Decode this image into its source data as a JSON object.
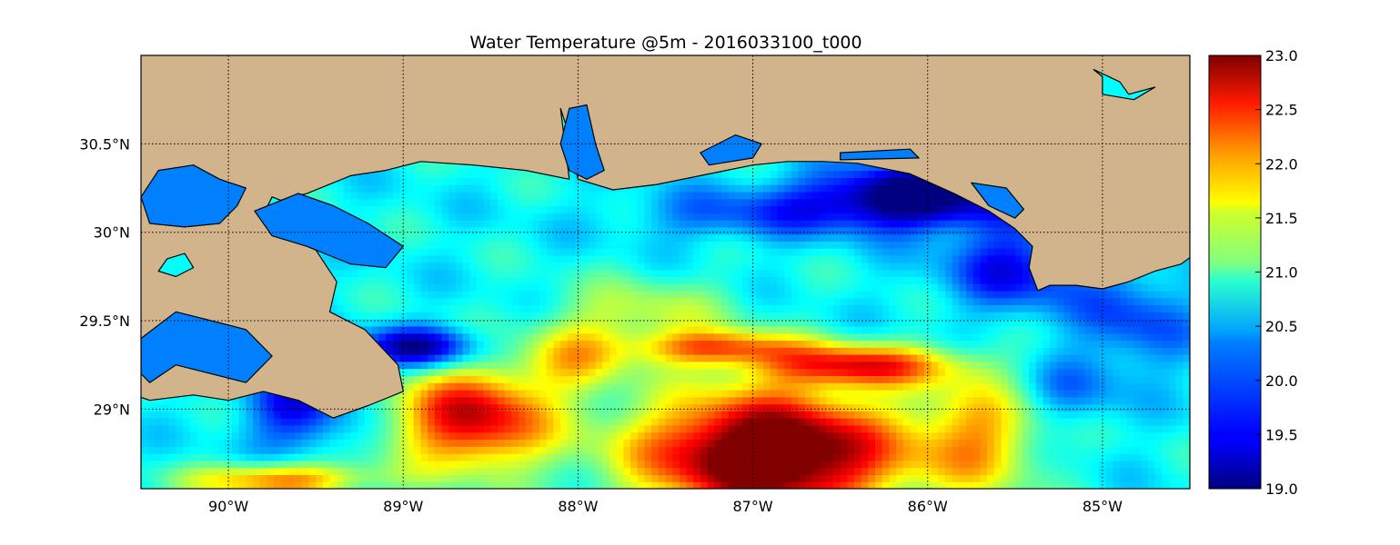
{
  "chart_data": {
    "type": "heatmap",
    "title": "Water Temperature @5m - 2016033100_t000",
    "xlim": [
      -90.5,
      -84.5
    ],
    "ylim": [
      28.55,
      31.0
    ],
    "x_ticks": [
      {
        "value": -90,
        "label": "90°W"
      },
      {
        "value": -89,
        "label": "89°W"
      },
      {
        "value": -88,
        "label": "88°W"
      },
      {
        "value": -87,
        "label": "87°W"
      },
      {
        "value": -86,
        "label": "86°W"
      },
      {
        "value": -85,
        "label": "85°W"
      }
    ],
    "y_ticks": [
      {
        "value": 29.0,
        "label": "29°N"
      },
      {
        "value": 29.5,
        "label": "29.5°N"
      },
      {
        "value": 30.0,
        "label": "30°N"
      },
      {
        "value": 30.5,
        "label": "30.5°N"
      }
    ],
    "grid": "on (dotted)",
    "colorbar": {
      "min": 19.0,
      "max": 23.0,
      "colormap": "jet",
      "ticks": [
        {
          "value": 19.0,
          "label": "19.0"
        },
        {
          "value": 19.5,
          "label": "19.5"
        },
        {
          "value": 20.0,
          "label": "20.0"
        },
        {
          "value": 20.5,
          "label": "20.5"
        },
        {
          "value": 21.0,
          "label": "21.0"
        },
        {
          "value": 21.5,
          "label": "21.5"
        },
        {
          "value": 22.0,
          "label": "22.0"
        },
        {
          "value": 22.5,
          "label": "22.5"
        },
        {
          "value": 23.0,
          "label": "23.0"
        }
      ]
    },
    "colors": {
      "land": "#d2b48c",
      "inland_water": "#0080ff",
      "lake": "#00ffff",
      "coastline": "#000000"
    },
    "features": [
      {
        "region": "far south-central Gulf (87.5°W–86.3°W, south of 29.1°N)",
        "approx_value": 23.0
      },
      {
        "region": "warm filaments near 29.3°N, 87°W–86°W",
        "approx_value": 22.5
      },
      {
        "region": "western warm eddy near 88.8°W–88°W, 29.0°N",
        "approx_value": 22.5
      },
      {
        "region": "nearshore band off Alabama / NW Florida (86.5°W–85.7°W, 30.1°N–30.3°N)",
        "approx_value": 19.1
      },
      {
        "region": "cold tongue south of Mississippi River delta (89°W, 29.3°N)",
        "approx_value": 19.3
      },
      {
        "region": "mid-shelf (87.5°W, 29.8°N)",
        "approx_value": 20.6
      },
      {
        "region": "eastern shelf (85°W, 29.5°N)",
        "approx_value": 19.9
      },
      {
        "region": "far western shelf (90°W, 28.8°N)",
        "approx_value": 20.3
      }
    ]
  }
}
